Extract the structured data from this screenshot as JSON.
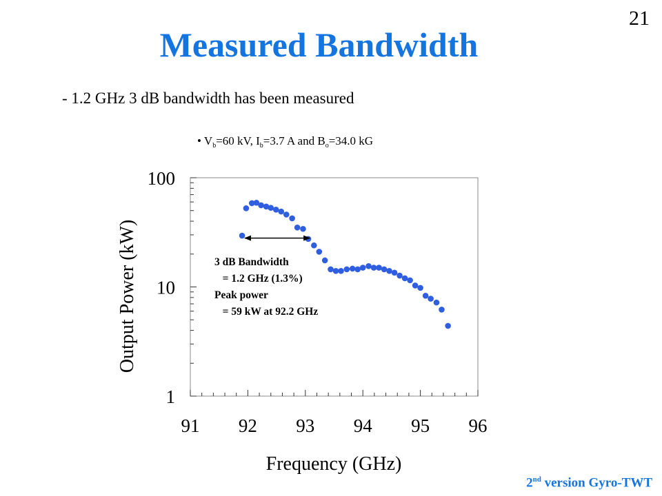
{
  "slide": {
    "page_number": "21",
    "title": "Measured Bandwidth",
    "bullet_main": "- 1.2 GHz 3 dB bandwidth has been measured",
    "bullet_sub": {
      "marker": "•",
      "vb_base": "V",
      "vb_sub": "b",
      "vb_rest": "=60 kV, ",
      "ib_base": "I",
      "ib_sub": "b",
      "ib_rest": "=3.7 A and ",
      "bo_base": "B",
      "bo_sub": "o",
      "bo_rest": "=34.0 kG"
    },
    "footer_num": "2",
    "footer_sup": "nd",
    "footer_text": " version Gyro-TWT"
  },
  "chart_data": {
    "type": "scatter",
    "xlabel": "Frequency (GHz)",
    "ylabel": "Output Power (kW)",
    "xlim": [
      91,
      96
    ],
    "ylim": [
      1,
      100
    ],
    "yscale": "log",
    "x_ticks": [
      "91",
      "92",
      "93",
      "94",
      "95",
      "96"
    ],
    "y_ticks": [
      "1",
      "10",
      "100"
    ],
    "marker_color": "#2f5fe0",
    "series": [
      {
        "points": [
          [
            91.9,
            29.5
          ],
          [
            91.97,
            52.5
          ],
          [
            92.07,
            58.5
          ],
          [
            92.15,
            59.0
          ],
          [
            92.23,
            56.0
          ],
          [
            92.32,
            54.5
          ],
          [
            92.4,
            53.0
          ],
          [
            92.49,
            51.0
          ],
          [
            92.58,
            49.0
          ],
          [
            92.67,
            46.0
          ],
          [
            92.77,
            42.5
          ],
          [
            92.86,
            35.0
          ],
          [
            92.96,
            34.0
          ],
          [
            93.05,
            27.5
          ],
          [
            93.15,
            24.0
          ],
          [
            93.24,
            21.0
          ],
          [
            93.34,
            17.5
          ],
          [
            93.44,
            14.5
          ],
          [
            93.53,
            14.0
          ],
          [
            93.62,
            14.0
          ],
          [
            93.72,
            14.5
          ],
          [
            93.82,
            14.7
          ],
          [
            93.91,
            14.5
          ],
          [
            94.0,
            15.0
          ],
          [
            94.1,
            15.5
          ],
          [
            94.19,
            15.0
          ],
          [
            94.28,
            15.0
          ],
          [
            94.37,
            14.5
          ],
          [
            94.46,
            14.0
          ],
          [
            94.55,
            13.5
          ],
          [
            94.64,
            12.7
          ],
          [
            94.73,
            12.0
          ],
          [
            94.82,
            11.5
          ],
          [
            94.91,
            10.3
          ],
          [
            95.0,
            9.8
          ],
          [
            95.09,
            8.3
          ],
          [
            95.18,
            7.8
          ],
          [
            95.28,
            7.2
          ],
          [
            95.37,
            6.2
          ],
          [
            95.48,
            4.4
          ]
        ]
      }
    ],
    "bandwidth_arrow": {
      "x_start": 91.9,
      "x_end": 93.1,
      "y": 28.0
    },
    "annotation_lines": [
      "3 dB Bandwidth",
      "   = 1.2 GHz (1.3%)",
      "Peak power",
      "   = 59 kW at 92.2 GHz"
    ]
  }
}
